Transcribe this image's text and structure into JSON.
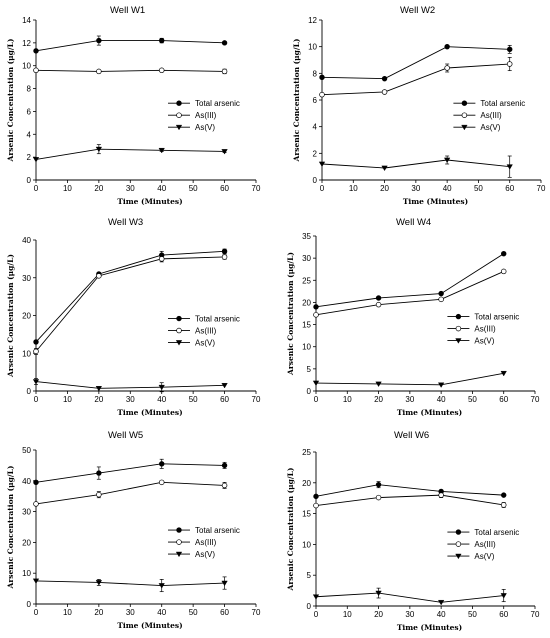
{
  "chart_data": [
    {
      "type": "line",
      "title": "Well W1",
      "xlabel": "Time (Minutes)",
      "ylabel": "Arsenic Concentration (μg/L)",
      "xlim": [
        0,
        70
      ],
      "ylim": [
        0,
        14
      ],
      "xticks": [
        0,
        10,
        20,
        30,
        40,
        50,
        60,
        70
      ],
      "yticks": [
        0,
        2,
        4,
        6,
        8,
        10,
        12,
        14
      ],
      "legend": "right",
      "x": [
        0,
        20,
        40,
        60
      ],
      "series": [
        {
          "name": "Total arsenic",
          "values": [
            11.3,
            12.2,
            12.2,
            12.0
          ],
          "errors": [
            0,
            0.4,
            0.2,
            0.1
          ],
          "marker": "filled-circle"
        },
        {
          "name": "As(III)",
          "values": [
            9.6,
            9.5,
            9.6,
            9.5
          ],
          "errors": [
            0,
            0,
            0,
            0.2
          ],
          "marker": "open-circle"
        },
        {
          "name": "As(V)",
          "values": [
            1.8,
            2.7,
            2.6,
            2.5
          ],
          "errors": [
            0,
            0.4,
            0.1,
            0.1
          ],
          "marker": "filled-triangle"
        }
      ]
    },
    {
      "type": "line",
      "title": "Well W2",
      "xlabel": "Time (Minutes)",
      "ylabel": "Arsenic Concentration (μg/L)",
      "xlim": [
        0,
        70
      ],
      "ylim": [
        0,
        12
      ],
      "xticks": [
        0,
        10,
        20,
        30,
        40,
        50,
        60,
        70
      ],
      "yticks": [
        0,
        2,
        4,
        6,
        8,
        10,
        12
      ],
      "legend": "right",
      "x": [
        0,
        20,
        40,
        60
      ],
      "series": [
        {
          "name": "Total arsenic",
          "values": [
            7.7,
            7.6,
            10.0,
            9.8
          ],
          "errors": [
            0,
            0,
            0,
            0.3
          ],
          "marker": "filled-circle"
        },
        {
          "name": "As(III)",
          "values": [
            6.4,
            6.6,
            8.4,
            8.7
          ],
          "errors": [
            0,
            0,
            0.3,
            0.5
          ],
          "marker": "open-circle"
        },
        {
          "name": "As(V)",
          "values": [
            1.2,
            0.9,
            1.5,
            1.0
          ],
          "errors": [
            0,
            0,
            0.3,
            0.8
          ],
          "marker": "filled-triangle"
        }
      ]
    },
    {
      "type": "line",
      "title": "Well W3",
      "xlabel": "Time (Minutes)",
      "ylabel": "Arsenic Concentration (μg/L)",
      "xlim": [
        0,
        70
      ],
      "ylim": [
        0,
        40
      ],
      "xticks": [
        0,
        10,
        20,
        30,
        40,
        50,
        60,
        70
      ],
      "yticks": [
        0,
        10,
        20,
        30,
        40
      ],
      "legend": "right",
      "x": [
        0,
        20,
        40,
        60
      ],
      "series": [
        {
          "name": "Total arsenic",
          "values": [
            13.0,
            31.0,
            36.0,
            37.0
          ],
          "errors": [
            0,
            0,
            1.0,
            0.6
          ],
          "marker": "filled-circle"
        },
        {
          "name": "As(III)",
          "values": [
            10.5,
            30.5,
            35.0,
            35.5
          ],
          "errors": [
            0.8,
            0,
            0.8,
            0.6
          ],
          "marker": "open-circle"
        },
        {
          "name": "As(V)",
          "values": [
            2.5,
            0.7,
            1.0,
            1.5
          ],
          "errors": [
            0.8,
            0,
            1.2,
            0
          ],
          "marker": "filled-triangle"
        }
      ]
    },
    {
      "type": "line",
      "title": "Well W4",
      "xlabel": "Time (Minutes)",
      "ylabel": "Arsenic Concentration (μg/L)",
      "xlim": [
        0,
        70
      ],
      "ylim": [
        0,
        35
      ],
      "xticks": [
        0,
        10,
        20,
        30,
        40,
        50,
        60,
        70
      ],
      "yticks": [
        0,
        5,
        10,
        15,
        20,
        25,
        30,
        35
      ],
      "legend": "right",
      "x": [
        0,
        20,
        40,
        60
      ],
      "series": [
        {
          "name": "Total arsenic",
          "values": [
            19.0,
            21.0,
            22.0,
            31.0
          ],
          "errors": [
            0,
            0.3,
            0,
            0
          ],
          "marker": "filled-circle"
        },
        {
          "name": "As(III)",
          "values": [
            17.2,
            19.5,
            20.7,
            27.0
          ],
          "errors": [
            0,
            0,
            0,
            0
          ],
          "marker": "open-circle"
        },
        {
          "name": "As(V)",
          "values": [
            1.8,
            1.6,
            1.4,
            4.0
          ],
          "errors": [
            0,
            0,
            0,
            0
          ],
          "marker": "filled-triangle"
        }
      ]
    },
    {
      "type": "line",
      "title": "Well W5",
      "xlabel": "Time (Minutes)",
      "ylabel": "Arsenic Concentration (μg/L)",
      "xlim": [
        0,
        70
      ],
      "ylim": [
        0,
        50
      ],
      "xticks": [
        0,
        10,
        20,
        30,
        40,
        50,
        60,
        70
      ],
      "yticks": [
        0,
        10,
        20,
        30,
        40,
        50
      ],
      "legend": "right",
      "x": [
        0,
        20,
        40,
        60
      ],
      "series": [
        {
          "name": "Total arsenic",
          "values": [
            39.5,
            42.5,
            45.5,
            45.0
          ],
          "errors": [
            0,
            2.0,
            1.5,
            1.0
          ],
          "marker": "filled-circle"
        },
        {
          "name": "As(III)",
          "values": [
            32.5,
            35.5,
            39.5,
            38.5
          ],
          "errors": [
            0,
            1.0,
            0,
            1.0
          ],
          "marker": "open-circle"
        },
        {
          "name": "As(V)",
          "values": [
            7.5,
            7.0,
            6.0,
            6.8
          ],
          "errors": [
            0,
            1.0,
            2.0,
            2.0
          ],
          "marker": "filled-triangle"
        }
      ]
    },
    {
      "type": "line",
      "title": "Well W6",
      "xlabel": "Time (Minutes)",
      "ylabel": "Arsenic Concentration (μg/L)",
      "xlim": [
        0,
        70
      ],
      "ylim": [
        0,
        25
      ],
      "xticks": [
        0,
        10,
        20,
        30,
        40,
        50,
        60,
        70
      ],
      "yticks": [
        0,
        5,
        10,
        15,
        20,
        25
      ],
      "legend": "right",
      "x": [
        0,
        20,
        40,
        60
      ],
      "series": [
        {
          "name": "Total arsenic",
          "values": [
            17.8,
            19.7,
            18.6,
            18.0
          ],
          "errors": [
            0,
            0.5,
            0,
            0
          ],
          "marker": "filled-circle"
        },
        {
          "name": "As(III)",
          "values": [
            16.3,
            17.6,
            18.0,
            16.4
          ],
          "errors": [
            0,
            0,
            0.4,
            0.4
          ],
          "marker": "open-circle"
        },
        {
          "name": "As(V)",
          "values": [
            1.5,
            2.1,
            0.6,
            1.7
          ],
          "errors": [
            0,
            0.8,
            0,
            1.0
          ],
          "marker": "filled-triangle"
        }
      ]
    }
  ]
}
